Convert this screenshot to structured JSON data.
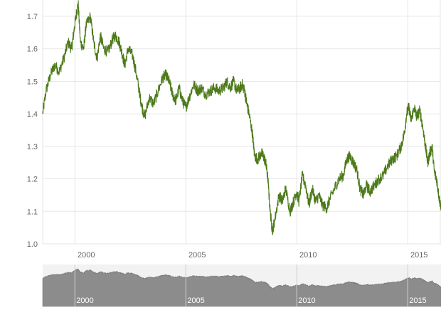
{
  "colors": {
    "line": "#4d7a1a",
    "grid": "#e6e6e6",
    "navigator_fill": "#8c8c8c",
    "navigator_bg": "#f2f2f2",
    "axis_text": "#666666"
  },
  "chart_data": {
    "type": "line",
    "title": "",
    "xlabel": "",
    "ylabel": "",
    "xlim": [
      1998.55,
      2016.5
    ],
    "ylim": [
      1.0,
      1.75
    ],
    "y_ticks": [
      "1.0",
      "1.1",
      "1.2",
      "1.3",
      "1.4",
      "1.5",
      "1.6",
      "1.7"
    ],
    "x_ticks": [
      "2000",
      "2005",
      "2010",
      "2015"
    ],
    "grid": true,
    "legend": "none",
    "series": [
      {
        "x": [
          1998.55,
          1998.7,
          1998.9,
          1999.1,
          1999.3,
          1999.5,
          1999.7,
          1999.85,
          1999.95,
          2000.05,
          2000.15,
          2000.25,
          2000.4,
          2000.5,
          2000.7,
          2000.85,
          2001.0,
          2001.15,
          2001.3,
          2001.5,
          2001.7,
          2001.85,
          2002.0,
          2002.15,
          2002.25,
          2002.4,
          2002.6,
          2002.75,
          2002.9,
          2003.0,
          2003.15,
          2003.35,
          2003.55,
          2003.75,
          2003.95,
          2004.1,
          2004.25,
          2004.4,
          2004.55,
          2004.7,
          2004.85,
          2005.0,
          2005.15,
          2005.35,
          2005.55,
          2005.7,
          2005.9,
          2006.1,
          2006.3,
          2006.5,
          2006.7,
          2006.85,
          2007.0,
          2007.15,
          2007.3,
          2007.45,
          2007.55,
          2007.65,
          2007.75,
          2007.85,
          2008.0,
          2008.1,
          2008.25,
          2008.4,
          2008.5,
          2008.6,
          2008.7,
          2008.8,
          2008.9,
          2009.0,
          2009.2,
          2009.35,
          2009.5,
          2009.7,
          2009.85,
          2010.0,
          2010.1,
          2010.25,
          2010.4,
          2010.55,
          2010.7,
          2010.85,
          2011.0,
          2011.15,
          2011.35,
          2011.5,
          2011.7,
          2011.9,
          2012.1,
          2012.25,
          2012.4,
          2012.55,
          2012.7,
          2012.85,
          2013.0,
          2013.15,
          2013.3,
          2013.5,
          2013.7,
          2013.9,
          2014.1,
          2014.3,
          2014.5,
          2014.7,
          2014.85,
          2014.95,
          2015.05,
          2015.15,
          2015.3,
          2015.4,
          2015.55,
          2015.7,
          2015.8,
          2015.9,
          2016.0,
          2016.1,
          2016.2,
          2016.3,
          2016.4,
          2016.5
        ],
        "values": [
          1.4,
          1.47,
          1.52,
          1.55,
          1.53,
          1.57,
          1.62,
          1.6,
          1.65,
          1.7,
          1.74,
          1.62,
          1.6,
          1.67,
          1.7,
          1.62,
          1.57,
          1.64,
          1.6,
          1.59,
          1.63,
          1.64,
          1.62,
          1.58,
          1.55,
          1.6,
          1.58,
          1.53,
          1.47,
          1.43,
          1.39,
          1.45,
          1.43,
          1.47,
          1.51,
          1.52,
          1.5,
          1.46,
          1.44,
          1.48,
          1.44,
          1.42,
          1.45,
          1.49,
          1.47,
          1.48,
          1.46,
          1.47,
          1.48,
          1.47,
          1.48,
          1.5,
          1.48,
          1.5,
          1.47,
          1.48,
          1.49,
          1.47,
          1.43,
          1.4,
          1.34,
          1.27,
          1.26,
          1.28,
          1.27,
          1.25,
          1.2,
          1.1,
          1.04,
          1.07,
          1.15,
          1.13,
          1.17,
          1.1,
          1.13,
          1.16,
          1.13,
          1.21,
          1.18,
          1.12,
          1.17,
          1.13,
          1.15,
          1.12,
          1.11,
          1.14,
          1.17,
          1.2,
          1.21,
          1.26,
          1.27,
          1.25,
          1.23,
          1.17,
          1.15,
          1.18,
          1.16,
          1.18,
          1.2,
          1.21,
          1.24,
          1.26,
          1.27,
          1.3,
          1.34,
          1.4,
          1.42,
          1.38,
          1.42,
          1.39,
          1.41,
          1.35,
          1.3,
          1.25,
          1.28,
          1.3,
          1.22,
          1.2,
          1.15,
          1.11
        ]
      }
    ]
  },
  "navigator": {
    "x_ticks": [
      "2000",
      "2005",
      "2010",
      "2015"
    ]
  }
}
